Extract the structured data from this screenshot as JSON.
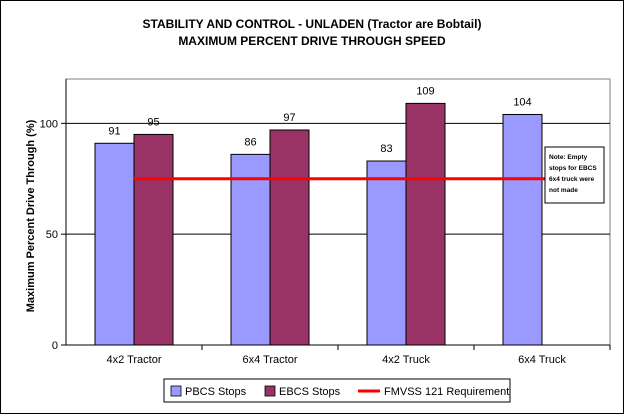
{
  "chart_data": {
    "type": "bar",
    "title": "STABILITY AND CONTROL - UNLADEN (Tractor are Bobtail)",
    "subtitle": "MAXIMUM PERCENT DRIVE THROUGH SPEED",
    "xlabel": "",
    "ylabel": "Maximum Percent Drive Through (%)",
    "ylim": [
      0,
      120
    ],
    "yticks": [
      0,
      50,
      100
    ],
    "grid": true,
    "legend_position": "bottom",
    "categories": [
      "4x2 Tractor",
      "6x4 Tractor",
      "4x2 Truck",
      "6x4 Truck"
    ],
    "series": [
      {
        "name": "PBCS Stops",
        "values": [
          91,
          86,
          83,
          104
        ],
        "color": "#9999FF"
      },
      {
        "name": "EBCS Stops",
        "values": [
          95,
          97,
          109,
          null
        ],
        "color": "#993366"
      }
    ],
    "reference_line": {
      "name": "FMVSS 121 Requirement",
      "value": 75,
      "color": "#FF0000"
    },
    "annotation": {
      "lines": [
        "Note: Empty",
        "stops for EBCS",
        "6x4 truck were",
        "not made"
      ]
    },
    "colors": {
      "plot_background": "#FFFFFF",
      "frame": "#000000"
    }
  }
}
